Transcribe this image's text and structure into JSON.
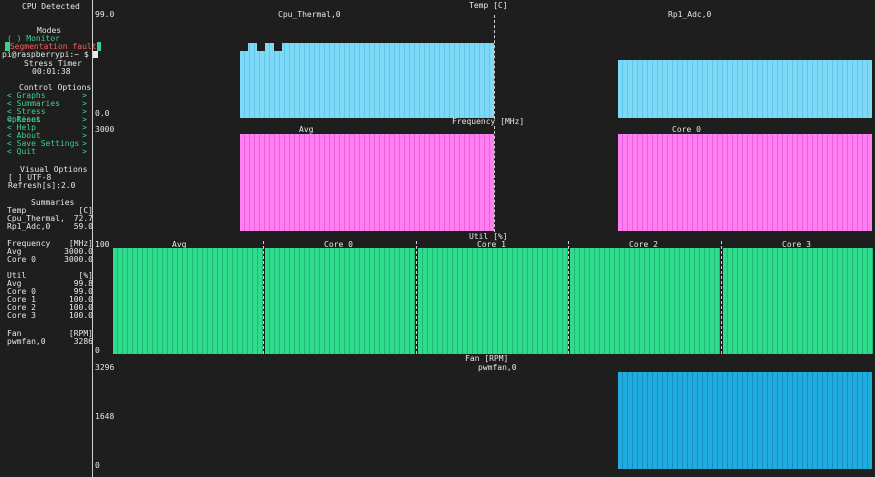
{
  "sidebar": {
    "cpu_detected": "CPU Detected",
    "modes_title": "Modes",
    "monitor_opt": "( ) Monitor",
    "seg_fault": "Segmentation fault",
    "prompt": "pi@raspberrypi:~ $",
    "stress_timer_title": "Stress Timer",
    "stress_timer_value": "00:01:38",
    "control_title": "Control Options",
    "controls": [
      {
        "left": "< Graphs",
        "right": ">"
      },
      {
        "left": "< Summaries",
        "right": ">"
      },
      {
        "left": "< Stress Options",
        "right": ">"
      },
      {
        "left": "< Reset",
        "right": ">"
      },
      {
        "left": "< Help",
        "right": ">"
      },
      {
        "left": "< About",
        "right": ">"
      },
      {
        "left": "< Save Settings",
        "right": ">"
      },
      {
        "left": "< Quit",
        "right": ">"
      }
    ],
    "visual_title": "Visual Options",
    "utf8": "[ ] UTF-8",
    "refresh": "Refresh[s]:2.0",
    "summaries_title": "Summaries",
    "temp": {
      "header": "Temp",
      "unit": "[C]",
      "rows": [
        {
          "k": "Cpu_Thermal,",
          "v": "72.7"
        },
        {
          "k": "Rp1_Adc,0",
          "v": "59.0"
        }
      ]
    },
    "freq": {
      "header": "Frequency",
      "unit": "[MHz]",
      "rows": [
        {
          "k": "Avg",
          "v": "3000.0"
        },
        {
          "k": "Core 0",
          "v": "3000.0"
        }
      ]
    },
    "util": {
      "header": "Util",
      "unit": "[%]",
      "rows": [
        {
          "k": "Avg",
          "v": "99.8"
        },
        {
          "k": "Core 0",
          "v": "99.0"
        },
        {
          "k": "Core 1",
          "v": "100.0"
        },
        {
          "k": "Core 2",
          "v": "100.0"
        },
        {
          "k": "Core 3",
          "v": "100.0"
        }
      ]
    },
    "fan": {
      "header": "Fan",
      "unit": "[RPM]",
      "rows": [
        {
          "k": "pwmfan,0",
          "v": "3286"
        }
      ]
    }
  },
  "charts": {
    "temp": {
      "title": "Temp [C]",
      "ymax": "99.0",
      "ymin": "0.0",
      "panels": [
        "Cpu_Thermal,0",
        "Rp1_Adc,0"
      ],
      "color": "#7fd8f5"
    },
    "freq": {
      "title": "Frequency [MHz]",
      "ymax": "3000",
      "panels": [
        "Avg",
        "Core 0"
      ],
      "color": "#ff7ff1"
    },
    "util": {
      "title": "Util [%]",
      "ymax": "100",
      "ymin": "0",
      "panels": [
        "Avg",
        "Core 0",
        "Core 1",
        "Core 2",
        "Core 3"
      ],
      "color": "#2fdc8c"
    },
    "fan": {
      "title": "Fan [RPM]",
      "ymax": "3296",
      "ymid": "1648",
      "ymin": "0",
      "panels": [
        "pwmfan,0"
      ],
      "color": "#1fa9dc"
    }
  }
}
